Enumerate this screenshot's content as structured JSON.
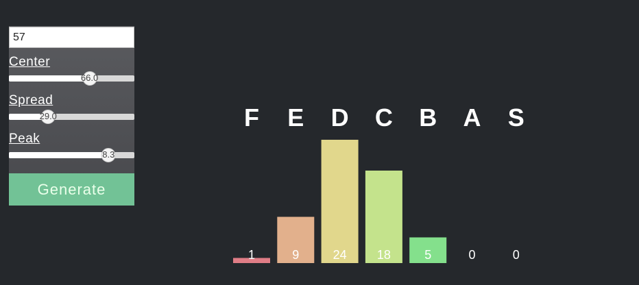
{
  "controls": {
    "count_value": "57",
    "sliders": [
      {
        "label": "Center",
        "value": 66.0,
        "display": "66.0",
        "min": 0,
        "max": 100
      },
      {
        "label": "Spread",
        "value": 29.0,
        "display": "29.0",
        "min": 0,
        "max": 100
      },
      {
        "label": "Peak",
        "value": 8.3,
        "display": "8.3",
        "min": 0,
        "max": 10
      }
    ],
    "generate_label": "Generate"
  },
  "chart_data": {
    "type": "bar",
    "categories": [
      "F",
      "E",
      "D",
      "C",
      "B",
      "A",
      "S"
    ],
    "values": [
      1,
      9,
      24,
      18,
      5,
      0,
      0
    ],
    "colors": [
      "#e07d86",
      "#e2b08c",
      "#e1d78c",
      "#c4e38c",
      "#84e08c",
      "#84e08c",
      "#84e08c"
    ],
    "title": "",
    "xlabel": "",
    "ylabel": "",
    "ylim": [
      0,
      24
    ],
    "grid": false
  }
}
